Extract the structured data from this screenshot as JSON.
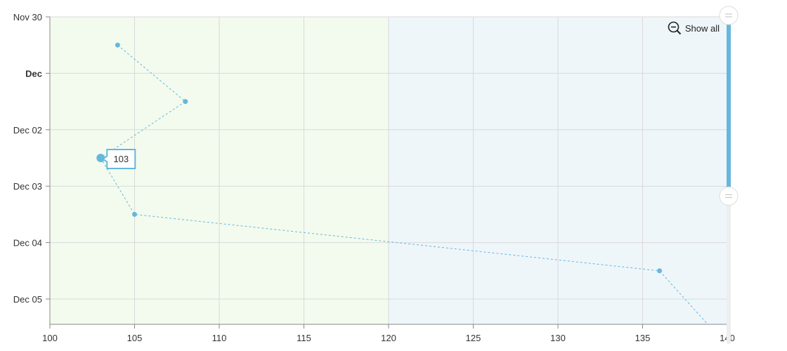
{
  "chart_data": {
    "type": "line",
    "x_range": [
      100,
      140
    ],
    "x_ticks": [
      100,
      105,
      110,
      115,
      120,
      125,
      130,
      135,
      140
    ],
    "y_axis": "time",
    "y_ticks": [
      {
        "label": "Nov 30",
        "value": 0,
        "bold": false
      },
      {
        "label": "Dec",
        "value": 1,
        "bold": true
      },
      {
        "label": "Dec 02",
        "value": 2,
        "bold": false
      },
      {
        "label": "Dec 03",
        "value": 3,
        "bold": false
      },
      {
        "label": "Dec 04",
        "value": 4,
        "bold": false
      },
      {
        "label": "Dec 05",
        "value": 5,
        "bold": false
      }
    ],
    "y_range": [
      "Nov 30",
      "Dec 05 10:00"
    ],
    "x_bands": [
      {
        "from": 100,
        "to": 120,
        "color": "#f3fbee"
      },
      {
        "from": 120,
        "to": 140,
        "color": "#eef6fa"
      }
    ],
    "series": [
      {
        "color": "#67b7dc",
        "points": [
          {
            "x": 104,
            "y": "Nov 30 12:00"
          },
          {
            "x": 108,
            "y": "Dec 01 12:00"
          },
          {
            "x": 103,
            "y": "Dec 02 12:00"
          },
          {
            "x": 105,
            "y": "Dec 03 12:00"
          },
          {
            "x": 136,
            "y": "Dec 04 12:00"
          },
          {
            "x": 139,
            "y": "Dec 05 12:00"
          }
        ]
      }
    ],
    "tooltip": {
      "value": "103",
      "point_index": 2
    },
    "grid": true,
    "scrollbar": {
      "orientation": "vertical",
      "position": "right",
      "from": 0,
      "to": 0.55
    }
  },
  "controls": {
    "show_all_label": "Show all",
    "zoom_out_icon": "zoom-out-icon"
  }
}
